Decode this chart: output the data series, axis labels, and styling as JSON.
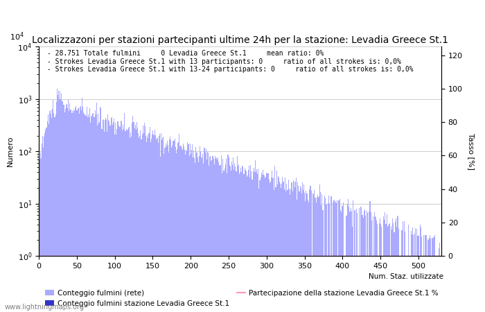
{
  "title": "Localizzazoni per stazioni partecipanti ultime 24h per la stazione: Levadia Greece St.1",
  "ylabel_left": "Numero",
  "ylabel_right": "Tasso [%]",
  "annotation_lines": [
    "28.751 Totale fulmini     0 Levadia Greece St.1     mean ratio: 0%",
    "Strokes Levadia Greece St.1 with 13 participants: 0     ratio of all strokes is: 0,0%",
    "Strokes Levadia Greece St.1 with 13-24 participants: 0     ratio of all strokes is: 0,0%"
  ],
  "watermark": "www.lightningmaps.org",
  "xlim": [
    0,
    530
  ],
  "ylim_left": [
    1,
    10000
  ],
  "ylim_right": [
    0,
    125
  ],
  "bar_color": "#aaaaff",
  "bar_color2": "#3333cc",
  "line_color": "#ff99bb",
  "grid_color": "#cccccc",
  "background_color": "#ffffff",
  "xticks": [
    0,
    50,
    100,
    150,
    200,
    250,
    300,
    350,
    400,
    450,
    500
  ],
  "right_yticks": [
    0,
    20,
    40,
    60,
    80,
    100,
    120
  ],
  "legend1_label": "Conteggio fulmini (rete)",
  "legend2_label": "Conteggio fulmini stazione Levadia Greece St.1",
  "legend3_label": "Partecipazione della stazione Levadia Greece St.1 %",
  "legend_x_label": "Num. Staz. utilizzate",
  "title_fontsize": 10,
  "label_fontsize": 8,
  "tick_fontsize": 8,
  "annotation_fontsize": 7
}
